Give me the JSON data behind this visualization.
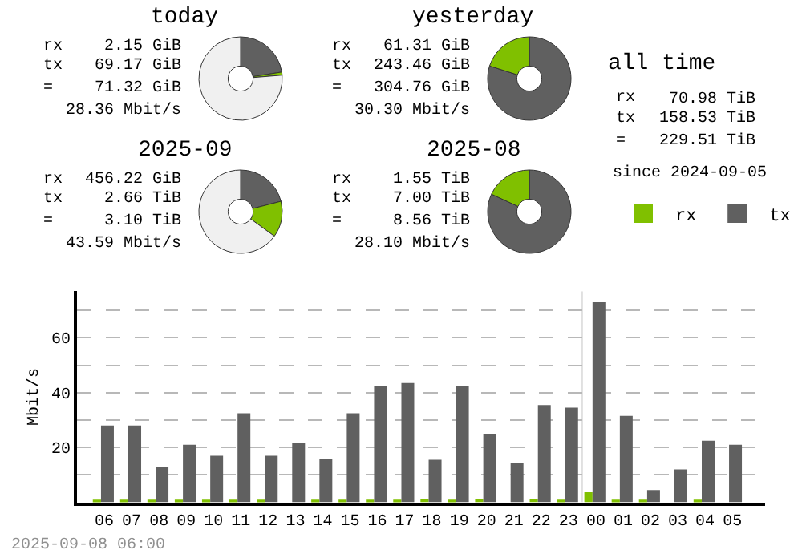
{
  "chart_data": [
    {
      "type": "donut",
      "title": "today",
      "values": [
        22.5,
        1.2,
        76.3
      ],
      "colors": [
        "#606060",
        "#80c000",
        "#f0f0f0"
      ],
      "annotations": [
        "rx",
        "2.15 GiB",
        "tx",
        "69.17 GiB",
        "=",
        "71.32 GiB",
        "28.36 Mbit/s"
      ]
    },
    {
      "type": "donut",
      "title": "yesterday",
      "values": [
        79.9,
        20.1
      ],
      "colors": [
        "#606060",
        "#80c000"
      ],
      "annotations": [
        "rx",
        "61.31 GiB",
        "tx",
        "243.46 GiB",
        "=",
        "304.76 GiB",
        "30.30 Mbit/s"
      ]
    },
    {
      "type": "donut",
      "title": "2025-09",
      "values": [
        21,
        14,
        65
      ],
      "colors": [
        "#606060",
        "#80c000",
        "#f0f0f0"
      ],
      "annotations": [
        "rx",
        "456.22 GiB",
        "tx",
        "2.66 TiB",
        "=",
        "3.10 TiB",
        "43.59 Mbit/s"
      ]
    },
    {
      "type": "donut",
      "title": "2025-08",
      "values": [
        81.9,
        18.1
      ],
      "colors": [
        "#606060",
        "#80c000"
      ],
      "annotations": [
        "rx",
        "1.55 TiB",
        "tx",
        "7.00 TiB",
        "=",
        "8.56 TiB",
        "28.10 Mbit/s"
      ]
    },
    {
      "type": "other",
      "title": "all time",
      "annotations": [
        "rx",
        "70.98 TiB",
        "tx",
        "158.53 TiB",
        "=",
        "229.51 TiB",
        "since 2024-09-05"
      ]
    },
    {
      "type": "bar",
      "ylabel": "Mbit/s",
      "categories": [
        "06",
        "07",
        "08",
        "09",
        "10",
        "11",
        "12",
        "13",
        "14",
        "15",
        "16",
        "17",
        "18",
        "19",
        "20",
        "21",
        "22",
        "23",
        "00",
        "01",
        "02",
        "03",
        "04",
        "05"
      ],
      "series": [
        {
          "name": "rx",
          "color": "#80c000",
          "values": [
            0.5,
            0.5,
            0.5,
            0.5,
            0.5,
            0.5,
            1,
            0,
            0.5,
            0.5,
            1,
            1,
            1.2,
            0.5,
            1.2,
            0,
            1.2,
            0.5,
            3.7,
            0.5,
            0.5,
            0,
            0.5,
            0
          ]
        },
        {
          "name": "tx",
          "color": "#606060",
          "values": [
            28,
            28,
            13,
            21,
            17,
            32.5,
            17,
            21.5,
            16,
            32.5,
            42.5,
            43.5,
            15.5,
            42.5,
            25,
            14.5,
            35.5,
            34.5,
            73,
            31.5,
            4.5,
            12,
            22.5,
            21
          ]
        }
      ],
      "ylim": [
        0,
        77
      ],
      "yticks": [
        {
          "value": 10,
          "label": null
        },
        20,
        {
          "value": 30,
          "label": null
        },
        40,
        {
          "value": 50,
          "label": null
        },
        60,
        {
          "value": 70,
          "label": null
        }
      ],
      "grid": "y",
      "legend": "top right",
      "ref_lines": [
        {
          "axis": "x",
          "value": "00",
          "color": "#e0e0e0"
        }
      ],
      "annotations": [
        "2025-09-08 06:00"
      ]
    }
  ]
}
